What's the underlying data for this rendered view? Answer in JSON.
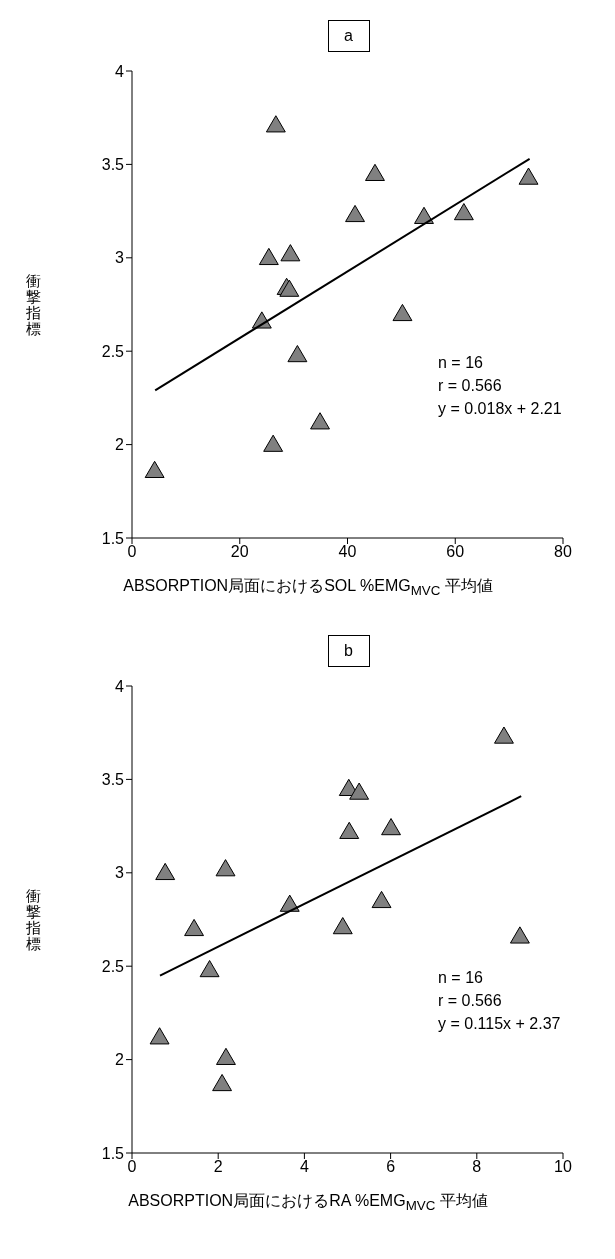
{
  "chart_data": [
    {
      "type": "scatter",
      "title": "a",
      "xlabel": "ABSORPTION局面におけるSOL %EMG$_{MVC}$ 平均値",
      "ylabel": "衝撃指標",
      "xlim": [
        0,
        80
      ],
      "xticks": [
        0,
        20,
        40,
        60,
        80
      ],
      "ylim": [
        1.5,
        4
      ],
      "yticks": [
        1.5,
        2,
        2.5,
        3,
        3.5,
        4
      ],
      "grid": false,
      "annotations": [
        "n = 16",
        "r = 0.566",
        "y = 0.018x + 2.21"
      ],
      "series": [
        {
          "marker": "triangle",
          "color": "#808080",
          "x": [
            4.2,
            26.7,
            45.1,
            73.6,
            41.4,
            54.2,
            61.6,
            25.4,
            29.4,
            28.7,
            29.2,
            24.1,
            50.2,
            30.7,
            34.9,
            26.2
          ],
          "values": [
            1.86,
            3.71,
            3.45,
            3.43,
            3.23,
            3.22,
            3.24,
            3.0,
            3.02,
            2.84,
            2.83,
            2.66,
            2.7,
            2.48,
            2.12,
            2.0
          ]
        },
        {
          "type": "line",
          "marker": "none",
          "color": "#000000",
          "x": [
            4.3,
            73.8
          ],
          "values": [
            2.29,
            3.53
          ]
        }
      ]
    },
    {
      "type": "scatter",
      "title": "b",
      "xlabel": "ABSORPTION局面におけるRA %EMG$_{MVC}$ 平均値",
      "ylabel": "衝撃指標",
      "xlim": [
        0,
        10
      ],
      "xticks": [
        0,
        2,
        4,
        6,
        8,
        10
      ],
      "ylim": [
        1.5,
        4
      ],
      "yticks": [
        1.5,
        2,
        2.5,
        3,
        3.5,
        4
      ],
      "grid": false,
      "annotations": [
        "n = 16",
        "r = 0.566",
        "y = 0.115x + 2.37"
      ],
      "series": [
        {
          "marker": "triangle",
          "color": "#808080",
          "x": [
            8.63,
            5.03,
            5.27,
            5.04,
            6.01,
            0.77,
            2.17,
            3.66,
            5.79,
            1.44,
            4.89,
            9.0,
            1.8,
            0.64,
            2.18,
            2.09
          ],
          "values": [
            3.73,
            3.45,
            3.43,
            3.22,
            3.24,
            3.0,
            3.02,
            2.83,
            2.85,
            2.7,
            2.71,
            2.66,
            2.48,
            2.12,
            2.01,
            1.87
          ]
        },
        {
          "type": "line",
          "marker": "none",
          "color": "#000000",
          "x": [
            0.65,
            9.03
          ],
          "values": [
            2.45,
            3.41
          ]
        }
      ]
    }
  ]
}
